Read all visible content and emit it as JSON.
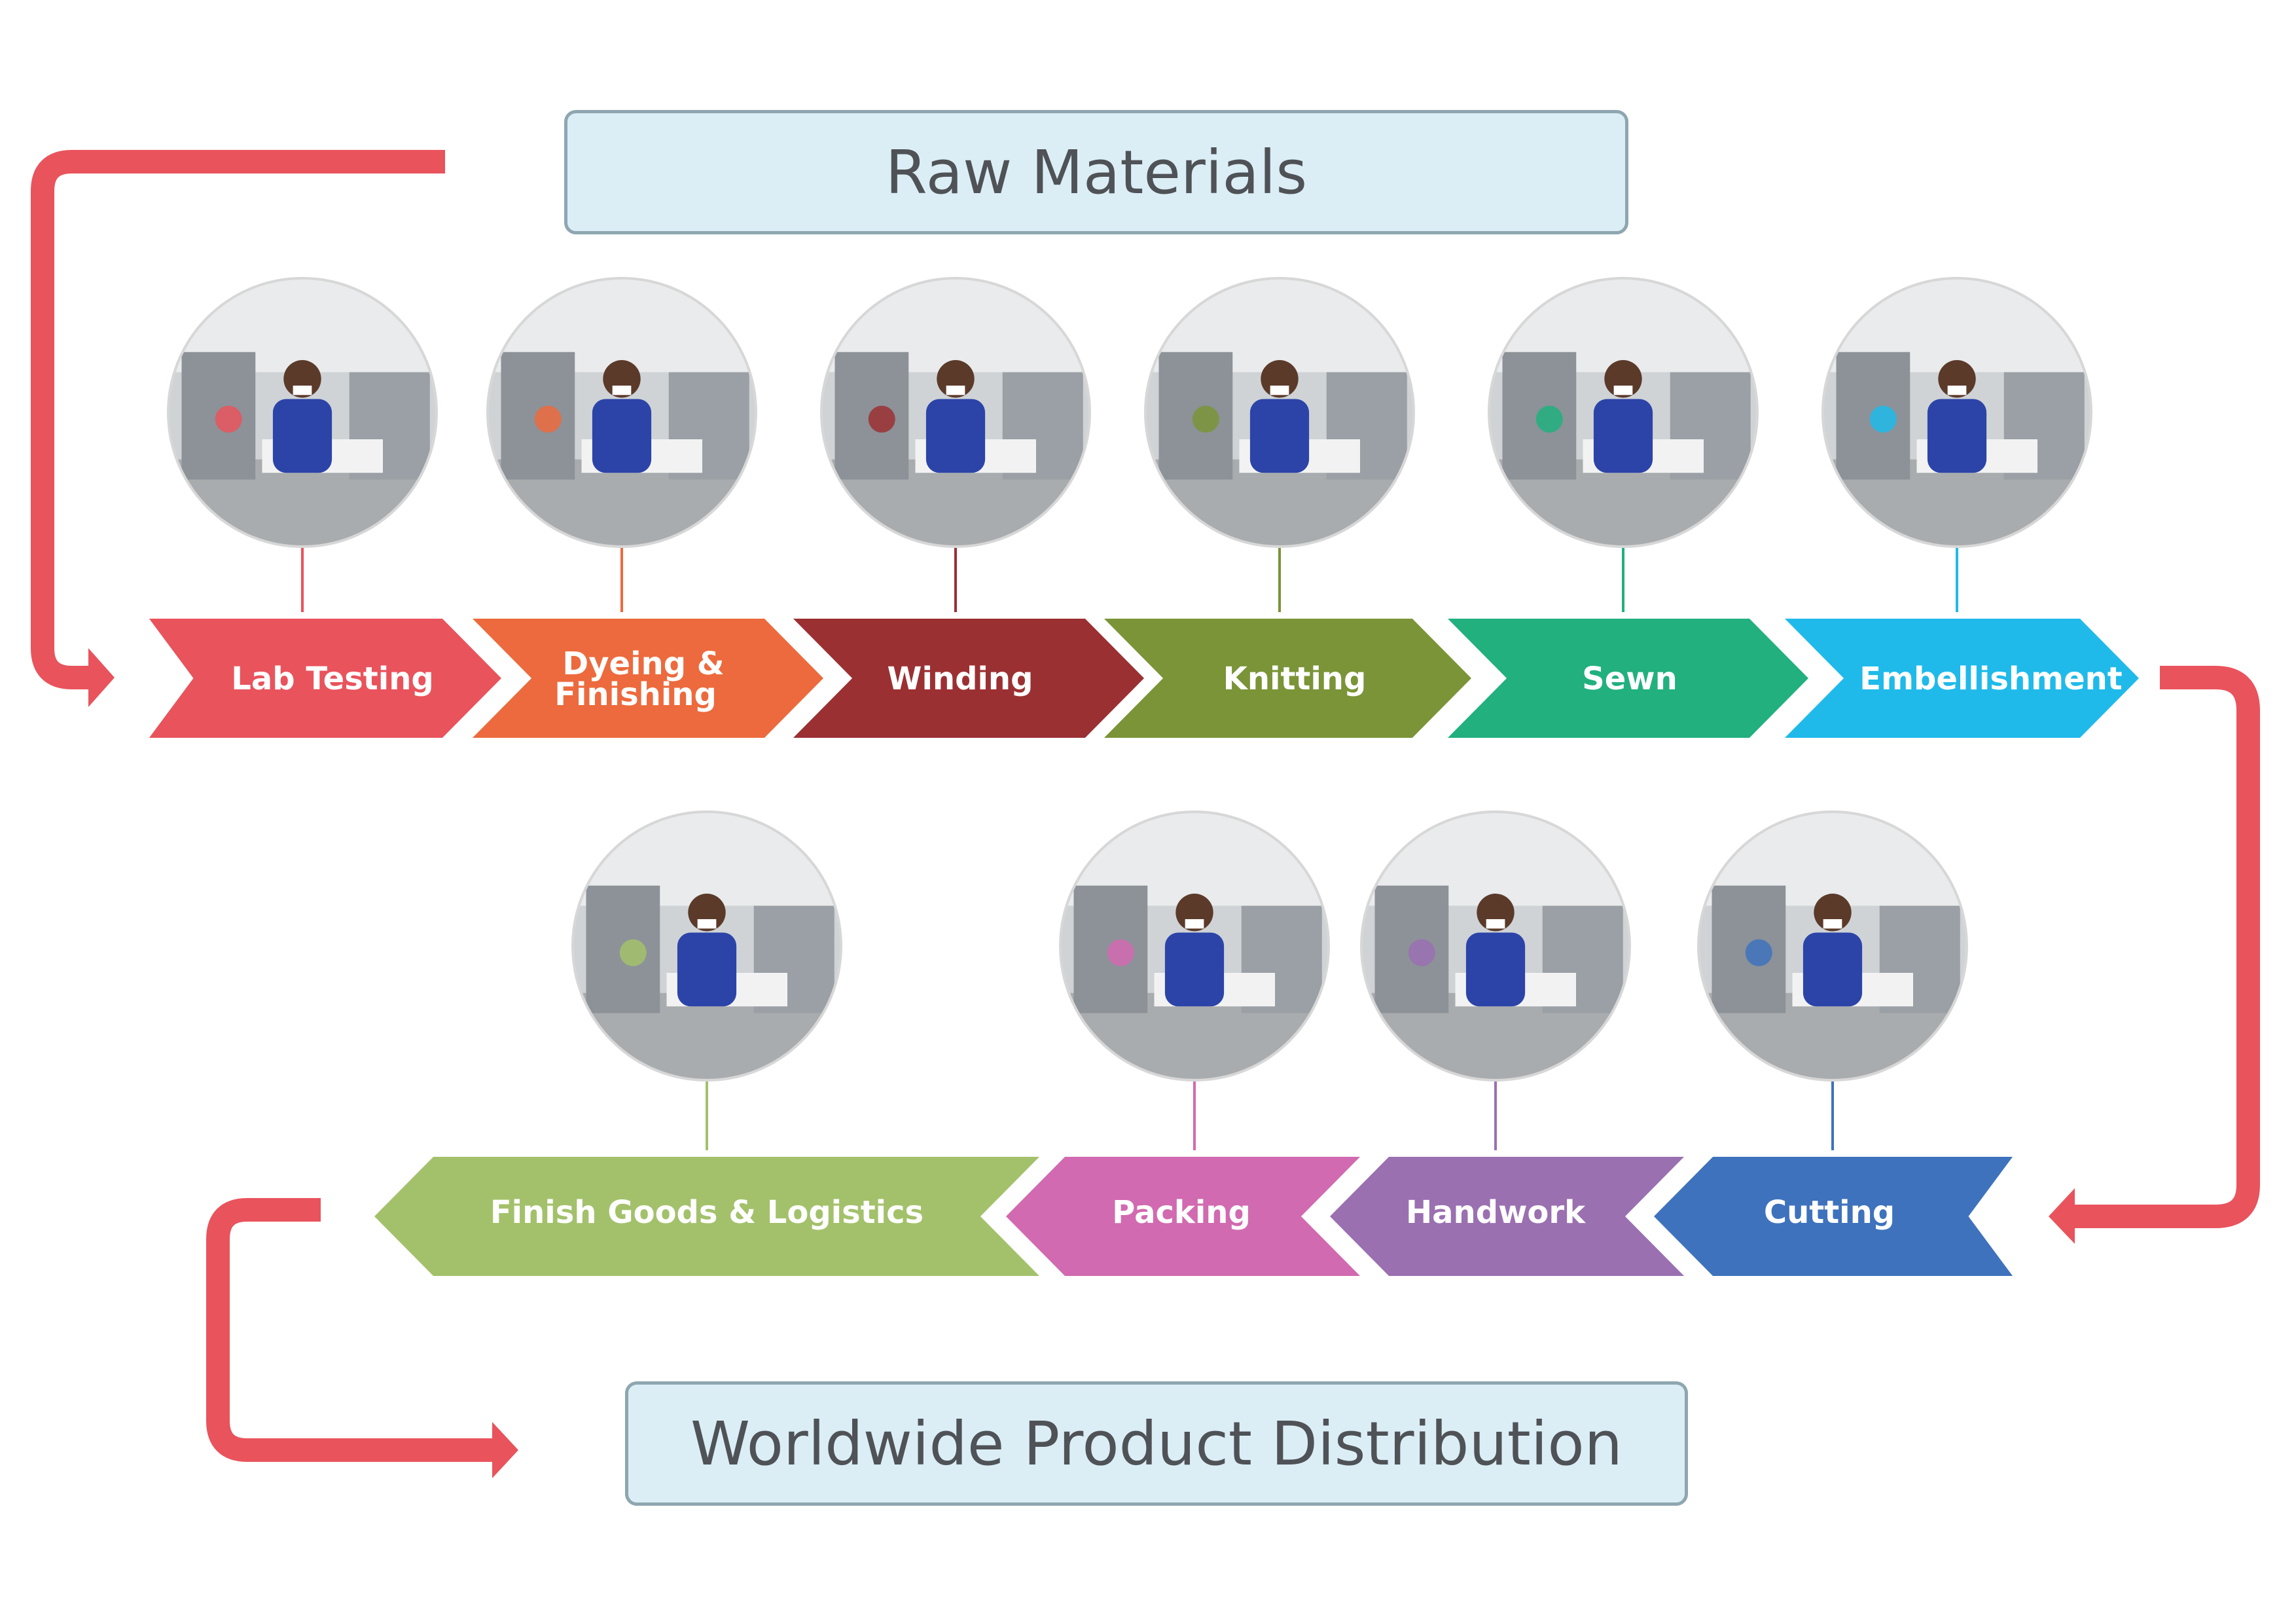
{
  "top_box": {
    "label": "Raw Materials"
  },
  "bottom_box": {
    "label": "Worldwide Product Distribution"
  },
  "top_row": [
    {
      "label": "Lab Testing",
      "color": "#e9535c",
      "photo": "lab-testing-photo"
    },
    {
      "label": "Dyeing &",
      "label2": "Finishing",
      "color": "#ec6a3d",
      "photo": "dyeing-finishing-photo"
    },
    {
      "label": "Winding",
      "color": "#9b3033",
      "photo": "winding-photo"
    },
    {
      "label": "Knitting",
      "color": "#7a9437",
      "photo": "knitting-photo"
    },
    {
      "label": "Sewn",
      "color": "#21b07e",
      "photo": "sewn-photo"
    },
    {
      "label": "Embellishment",
      "color": "#1fbaea",
      "photo": "embellishment-photo"
    }
  ],
  "bottom_row": [
    {
      "label": "Finish Goods & Logistics",
      "color": "#a3c16b",
      "photo": "logistics-photo"
    },
    {
      "label": "Packing",
      "color": "#d16ab0",
      "photo": "packing-photo"
    },
    {
      "label": "Handwork",
      "color": "#9a70b1",
      "photo": "handwork-photo"
    },
    {
      "label": "Cutting",
      "color": "#3e72bd",
      "photo": "cutting-photo"
    }
  ],
  "flow_arrow_color": "#e9535c"
}
